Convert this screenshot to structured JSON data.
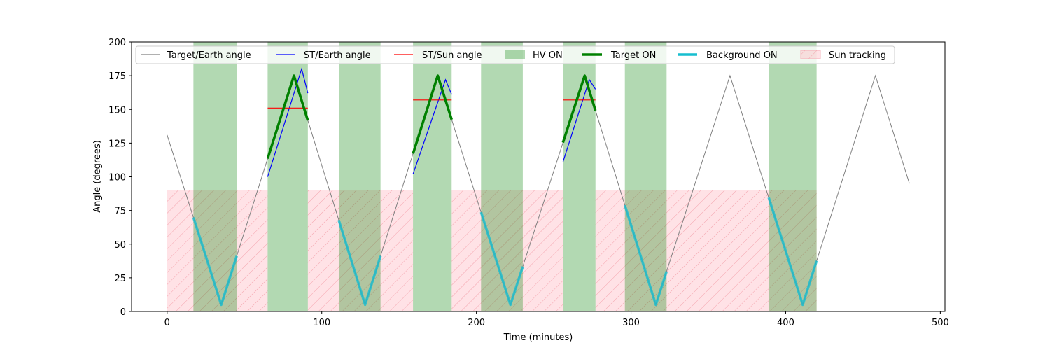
{
  "chart_data": {
    "type": "line",
    "title": "",
    "xlabel": "Time (minutes)",
    "ylabel": "Angle (degrees)",
    "xlim": [
      -23,
      503
    ],
    "ylim": [
      0,
      200
    ],
    "x_ticks": [
      0,
      100,
      200,
      300,
      400,
      500
    ],
    "y_ticks": [
      0,
      25,
      50,
      75,
      100,
      125,
      150,
      175,
      200
    ],
    "grid": false,
    "legend_position": "top",
    "legend": [
      {
        "key": "target_earth",
        "label": "Target/Earth angle",
        "color": "#808080",
        "kind": "line"
      },
      {
        "key": "st_earth",
        "label": "ST/Earth angle",
        "color": "#0000ff",
        "kind": "line"
      },
      {
        "key": "st_sun",
        "label": "ST/Sun angle",
        "color": "#ff0000",
        "kind": "line"
      },
      {
        "key": "hv_on",
        "label": "HV ON",
        "color": "#008000",
        "kind": "patch"
      },
      {
        "key": "target_on",
        "label": "Target ON",
        "color": "#008000",
        "kind": "thick"
      },
      {
        "key": "background_on",
        "label": "Background ON",
        "color": "#17becf",
        "kind": "thick"
      },
      {
        "key": "sun_tracking",
        "label": "Sun tracking",
        "color": "#ffb6c1",
        "kind": "hatch"
      }
    ],
    "series": [
      {
        "name": "Target/Earth angle",
        "color": "#808080",
        "x": [
          0,
          35,
          82,
          128,
          175,
          222,
          270,
          316,
          364,
          411,
          458,
          480
        ],
        "y": [
          131,
          5,
          175,
          5,
          175,
          5,
          175,
          5,
          175,
          5,
          175,
          95
        ]
      },
      {
        "name": "ST/Earth angle",
        "color": "#0000ff",
        "segments": [
          {
            "x": [
              65,
              87,
              91
            ],
            "y": [
              100,
              180,
              162
            ]
          },
          {
            "x": [
              159,
              180,
              184
            ],
            "y": [
              102,
              172,
              161
            ]
          },
          {
            "x": [
              256,
              273,
              277
            ],
            "y": [
              111,
              172,
              165
            ]
          }
        ]
      },
      {
        "name": "ST/Sun angle",
        "color": "#ff0000",
        "segments": [
          {
            "x": [
              65,
              91
            ],
            "y": [
              151,
              151
            ]
          },
          {
            "x": [
              159,
              184
            ],
            "y": [
              157,
              157
            ]
          },
          {
            "x": [
              256,
              277
            ],
            "y": [
              157,
              157
            ]
          }
        ]
      }
    ],
    "hv_on_intervals": [
      [
        17,
        45
      ],
      [
        65,
        91
      ],
      [
        111,
        138
      ],
      [
        159,
        184
      ],
      [
        203,
        230
      ],
      [
        256,
        277
      ],
      [
        296,
        323
      ],
      [
        389,
        420
      ]
    ],
    "target_on_intervals": [
      [
        65,
        91
      ],
      [
        159,
        184
      ],
      [
        256,
        277
      ]
    ],
    "background_on_intervals": [
      [
        17,
        45
      ],
      [
        111,
        138
      ],
      [
        203,
        230
      ],
      [
        296,
        323
      ],
      [
        389,
        420
      ]
    ],
    "sun_tracking": {
      "y_max": 90,
      "intervals": [
        [
          0,
          65
        ],
        [
          91,
          159
        ],
        [
          184,
          256
        ],
        [
          277,
          420
        ]
      ]
    }
  }
}
